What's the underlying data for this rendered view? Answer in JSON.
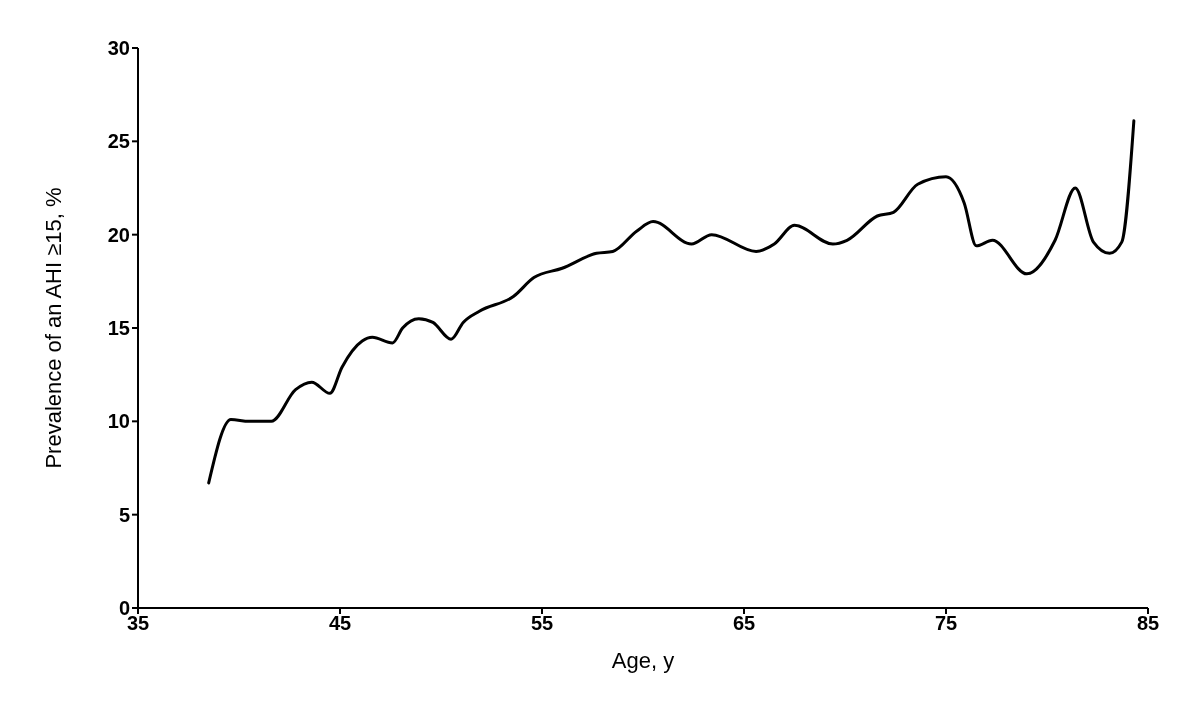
{
  "chart_data": {
    "type": "line",
    "xlabel": "Age, y",
    "ylabel": "Prevalence of an AHI ≥15, %",
    "xlim": [
      35,
      85
    ],
    "xticks": [
      35,
      45,
      55,
      65,
      75,
      85
    ],
    "ylim": [
      0,
      30
    ],
    "yticks": [
      0,
      5,
      10,
      15,
      20,
      25,
      30
    ],
    "grid": false,
    "legend": false,
    "marker": "none",
    "line_style": "solid",
    "series": [
      {
        "color": "#000000",
        "x": [
          38.5,
          39.6,
          40.5,
          41.6,
          42.8,
          43.6,
          44.5,
          45.1,
          46.1,
          46.6,
          47.6,
          48.1,
          48.9,
          49.6,
          50.5,
          51.1,
          51.9,
          53.6,
          54.6,
          56.0,
          57.7,
          58.5,
          59.7,
          60.5,
          62.4,
          63.4,
          65.6,
          66.5,
          67.5,
          69.4,
          70.1,
          71.6,
          72.4,
          73.6,
          75.0,
          75.9,
          76.5,
          77.3,
          79.0,
          80.4,
          81.4,
          82.3,
          83.1,
          83.7,
          84.3
        ],
        "values": [
          6.7,
          10.1,
          10.0,
          10.0,
          11.7,
          12.1,
          11.5,
          12.9,
          14.3,
          14.5,
          14.2,
          15.0,
          15.5,
          15.3,
          14.4,
          15.3,
          15.9,
          16.7,
          17.7,
          18.2,
          19.0,
          19.1,
          20.2,
          20.7,
          19.5,
          20.0,
          19.1,
          19.5,
          20.5,
          19.5,
          19.7,
          21.0,
          21.2,
          22.7,
          23.1,
          21.7,
          19.4,
          19.7,
          17.9,
          19.7,
          22.5,
          19.6,
          19.0,
          19.6,
          26.1
        ]
      }
    ]
  }
}
